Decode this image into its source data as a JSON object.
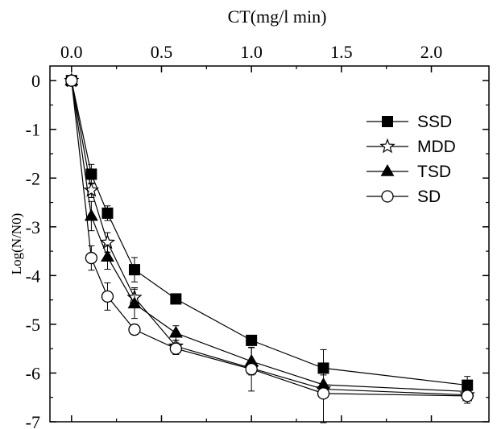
{
  "chart_data": {
    "type": "line",
    "title": "",
    "xlabel": "CT(mg/l min)",
    "ylabel": "Log(N/N0)",
    "x_axis_position": "top",
    "xlim": [
      -0.12,
      2.32
    ],
    "ylim": [
      -7,
      0.3
    ],
    "x_ticks": [
      0.0,
      0.5,
      1.0,
      1.5,
      2.0
    ],
    "x_tick_labels": [
      "0.0",
      "0.5",
      "1.0",
      "1.5",
      "2.0"
    ],
    "y_ticks": [
      0,
      -1,
      -2,
      -3,
      -4,
      -5,
      -6,
      -7
    ],
    "y_tick_labels": [
      "0",
      "-1",
      "-2",
      "-3",
      "-4",
      "-5",
      "-6",
      "-7"
    ],
    "grid": false,
    "legend_position": "top-right",
    "x": [
      0.0,
      0.11,
      0.2,
      0.35,
      0.58,
      1.0,
      1.4,
      2.2
    ],
    "series": [
      {
        "name": "SSD",
        "marker": "filled-square",
        "values": [
          0,
          -1.92,
          -2.72,
          -3.88,
          -4.48,
          -5.33,
          -5.9,
          -6.25
        ],
        "errors": [
          0,
          0.2,
          0.15,
          0.25,
          0.05,
          0.05,
          0.38,
          0.18
        ]
      },
      {
        "name": "MDD",
        "marker": "open-star",
        "values": [
          0,
          -2.25,
          -3.32,
          -4.45,
          -5.45,
          -5.9,
          -6.33,
          -6.45
        ],
        "errors": [
          0,
          0.15,
          0.2,
          0.2,
          0.12,
          0.1,
          0.1,
          0.1
        ]
      },
      {
        "name": "TSD",
        "marker": "filled-triangle",
        "values": [
          0,
          -2.78,
          -3.62,
          -4.58,
          -5.18,
          -5.76,
          -6.24,
          -6.38
        ],
        "errors": [
          0,
          0.3,
          0.25,
          0.3,
          0.15,
          0.28,
          0.2,
          0.1
        ]
      },
      {
        "name": "SD",
        "marker": "open-circle",
        "values": [
          0,
          -3.64,
          -4.43,
          -5.11,
          -5.5,
          -5.92,
          -6.42,
          -6.47
        ],
        "errors": [
          0,
          0.25,
          0.28,
          0.1,
          0.12,
          0.45,
          0.6,
          0.15
        ]
      }
    ]
  }
}
